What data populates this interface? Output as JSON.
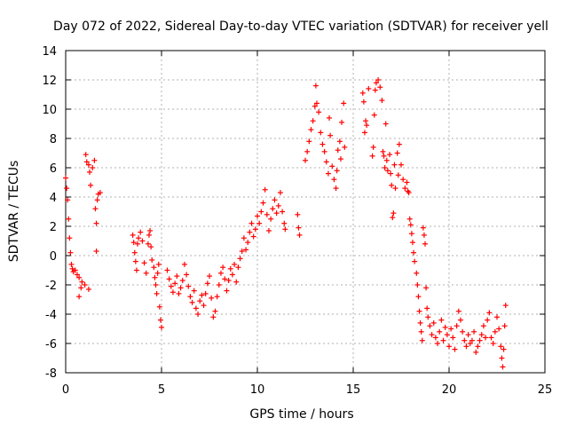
{
  "chart_data": {
    "type": "scatter",
    "title": "Day 072 of 2022, Sidereal Day-to-day VTEC variation (SDTVAR) for receiver yell",
    "xlabel": "GPS time / hours",
    "ylabel": "SDTVAR / TECUs",
    "xlim": [
      0,
      25
    ],
    "ylim": [
      -8,
      14
    ],
    "x_ticks": [
      0,
      5,
      10,
      15,
      20,
      25
    ],
    "y_ticks": [
      -8,
      -6,
      -4,
      -2,
      0,
      2,
      4,
      6,
      8,
      10,
      12,
      14
    ],
    "x_tick_labels": [
      "0",
      "5",
      "10",
      "15",
      "20",
      "25"
    ],
    "y_tick_labels": [
      "-8",
      "-6",
      "-4",
      "-2",
      "0",
      "2",
      "4",
      "6",
      "8",
      "10",
      "12",
      "14"
    ],
    "grid": true,
    "marker": "+",
    "marker_color": "#ff0000",
    "series": [
      {
        "name": "SDTVAR",
        "points": [
          [
            0.0,
            5.3
          ],
          [
            0.05,
            4.6
          ],
          [
            0.1,
            3.8
          ],
          [
            0.15,
            2.5
          ],
          [
            0.2,
            1.2
          ],
          [
            0.25,
            0.2
          ],
          [
            0.3,
            -0.6
          ],
          [
            0.35,
            -0.9
          ],
          [
            0.4,
            -1.1
          ],
          [
            0.5,
            -1.0
          ],
          [
            0.6,
            -1.3
          ],
          [
            0.7,
            -1.5
          ],
          [
            0.8,
            -2.2
          ],
          [
            0.7,
            -2.8
          ],
          [
            0.85,
            -1.8
          ],
          [
            1.0,
            -2.0
          ],
          [
            1.05,
            6.9
          ],
          [
            1.1,
            6.4
          ],
          [
            1.2,
            6.2
          ],
          [
            1.25,
            5.7
          ],
          [
            1.3,
            4.8
          ],
          [
            1.2,
            -2.3
          ],
          [
            1.4,
            6.0
          ],
          [
            1.5,
            6.5
          ],
          [
            1.55,
            3.2
          ],
          [
            1.6,
            2.2
          ],
          [
            1.6,
            0.3
          ],
          [
            1.65,
            3.8
          ],
          [
            1.7,
            4.2
          ],
          [
            1.8,
            4.3
          ],
          [
            3.5,
            1.4
          ],
          [
            3.55,
            0.9
          ],
          [
            3.6,
            0.2
          ],
          [
            3.65,
            -0.4
          ],
          [
            3.7,
            -1.0
          ],
          [
            3.75,
            0.8
          ],
          [
            3.8,
            1.2
          ],
          [
            3.9,
            1.6
          ],
          [
            4.0,
            1.0
          ],
          [
            4.1,
            -0.5
          ],
          [
            4.2,
            -1.2
          ],
          [
            4.3,
            0.8
          ],
          [
            4.35,
            1.4
          ],
          [
            4.4,
            1.7
          ],
          [
            4.45,
            0.6
          ],
          [
            4.5,
            -0.3
          ],
          [
            4.6,
            -0.8
          ],
          [
            4.65,
            -1.5
          ],
          [
            4.7,
            -2.0
          ],
          [
            4.75,
            -2.6
          ],
          [
            4.8,
            -1.2
          ],
          [
            4.85,
            -0.6
          ],
          [
            4.9,
            -3.5
          ],
          [
            4.95,
            -4.4
          ],
          [
            5.0,
            -4.9
          ],
          [
            5.3,
            -1.0
          ],
          [
            5.4,
            -1.6
          ],
          [
            5.5,
            -2.1
          ],
          [
            5.6,
            -2.5
          ],
          [
            5.7,
            -1.9
          ],
          [
            5.8,
            -1.4
          ],
          [
            5.9,
            -2.6
          ],
          [
            6.0,
            -2.2
          ],
          [
            6.1,
            -1.7
          ],
          [
            6.2,
            -0.6
          ],
          [
            6.3,
            -1.3
          ],
          [
            6.4,
            -2.1
          ],
          [
            6.5,
            -2.8
          ],
          [
            6.6,
            -3.2
          ],
          [
            6.7,
            -2.4
          ],
          [
            6.8,
            -3.6
          ],
          [
            6.9,
            -4.0
          ],
          [
            7.0,
            -3.1
          ],
          [
            7.1,
            -2.7
          ],
          [
            7.2,
            -3.4
          ],
          [
            7.3,
            -2.6
          ],
          [
            7.4,
            -1.9
          ],
          [
            7.5,
            -1.4
          ],
          [
            7.6,
            -2.9
          ],
          [
            7.7,
            -4.2
          ],
          [
            7.8,
            -3.8
          ],
          [
            7.9,
            -2.8
          ],
          [
            8.0,
            -2.0
          ],
          [
            8.1,
            -1.2
          ],
          [
            8.2,
            -0.8
          ],
          [
            8.3,
            -1.6
          ],
          [
            8.4,
            -2.4
          ],
          [
            8.5,
            -1.7
          ],
          [
            8.6,
            -0.9
          ],
          [
            8.7,
            -1.3
          ],
          [
            8.8,
            -0.6
          ],
          [
            8.9,
            -1.8
          ],
          [
            9.0,
            -0.8
          ],
          [
            9.1,
            -0.2
          ],
          [
            9.2,
            0.3
          ],
          [
            9.3,
            1.2
          ],
          [
            9.4,
            0.4
          ],
          [
            9.5,
            0.9
          ],
          [
            9.6,
            1.6
          ],
          [
            9.7,
            2.2
          ],
          [
            9.8,
            1.3
          ],
          [
            9.9,
            1.8
          ],
          [
            10.0,
            2.7
          ],
          [
            10.1,
            2.2
          ],
          [
            10.2,
            3.0
          ],
          [
            10.3,
            3.6
          ],
          [
            10.4,
            4.5
          ],
          [
            10.5,
            2.8
          ],
          [
            10.6,
            1.7
          ],
          [
            10.7,
            2.5
          ],
          [
            10.8,
            3.2
          ],
          [
            10.9,
            3.8
          ],
          [
            11.0,
            2.9
          ],
          [
            11.1,
            3.4
          ],
          [
            11.2,
            4.3
          ],
          [
            11.3,
            3.0
          ],
          [
            11.4,
            2.2
          ],
          [
            11.45,
            1.8
          ],
          [
            12.1,
            2.8
          ],
          [
            12.15,
            1.9
          ],
          [
            12.2,
            1.4
          ],
          [
            12.5,
            6.5
          ],
          [
            12.6,
            7.1
          ],
          [
            12.7,
            7.8
          ],
          [
            12.8,
            8.6
          ],
          [
            12.9,
            9.2
          ],
          [
            13.0,
            10.2
          ],
          [
            13.05,
            11.6
          ],
          [
            13.1,
            10.4
          ],
          [
            13.2,
            9.8
          ],
          [
            13.3,
            8.4
          ],
          [
            13.4,
            7.6
          ],
          [
            13.5,
            7.1
          ],
          [
            13.6,
            6.4
          ],
          [
            13.7,
            5.6
          ],
          [
            13.75,
            9.4
          ],
          [
            13.8,
            8.2
          ],
          [
            13.9,
            6.1
          ],
          [
            14.0,
            5.2
          ],
          [
            14.1,
            4.6
          ],
          [
            14.15,
            5.8
          ],
          [
            14.2,
            7.2
          ],
          [
            14.3,
            7.8
          ],
          [
            14.35,
            6.6
          ],
          [
            14.4,
            9.1
          ],
          [
            14.5,
            10.4
          ],
          [
            14.55,
            7.4
          ],
          [
            15.5,
            11.1
          ],
          [
            15.55,
            10.5
          ],
          [
            15.6,
            8.4
          ],
          [
            15.65,
            9.2
          ],
          [
            15.7,
            8.9
          ],
          [
            15.8,
            11.4
          ],
          [
            16.0,
            6.8
          ],
          [
            16.05,
            7.4
          ],
          [
            16.1,
            9.6
          ],
          [
            16.15,
            11.3
          ],
          [
            16.2,
            11.8
          ],
          [
            16.3,
            12.0
          ],
          [
            16.4,
            11.5
          ],
          [
            16.5,
            10.6
          ],
          [
            16.55,
            7.1
          ],
          [
            16.6,
            6.8
          ],
          [
            16.65,
            6.0
          ],
          [
            16.7,
            9.0
          ],
          [
            16.75,
            6.5
          ],
          [
            16.8,
            5.8
          ],
          [
            16.9,
            6.9
          ],
          [
            16.95,
            5.6
          ],
          [
            17.0,
            4.8
          ],
          [
            17.05,
            2.6
          ],
          [
            17.1,
            2.9
          ],
          [
            17.15,
            6.2
          ],
          [
            17.2,
            4.6
          ],
          [
            17.3,
            7.0
          ],
          [
            17.35,
            5.5
          ],
          [
            17.4,
            7.6
          ],
          [
            17.5,
            6.2
          ],
          [
            17.6,
            5.2
          ],
          [
            17.7,
            4.6
          ],
          [
            17.8,
            5.0
          ],
          [
            17.85,
            4.4
          ],
          [
            17.9,
            4.3
          ],
          [
            17.95,
            2.5
          ],
          [
            18.0,
            2.1
          ],
          [
            18.05,
            1.5
          ],
          [
            18.1,
            0.9
          ],
          [
            18.15,
            0.2
          ],
          [
            18.2,
            -0.4
          ],
          [
            18.3,
            -1.2
          ],
          [
            18.35,
            -2.0
          ],
          [
            18.4,
            -2.8
          ],
          [
            18.45,
            -3.8
          ],
          [
            18.5,
            -4.6
          ],
          [
            18.55,
            -5.2
          ],
          [
            18.6,
            -5.8
          ],
          [
            18.65,
            1.9
          ],
          [
            18.7,
            1.4
          ],
          [
            18.75,
            0.8
          ],
          [
            18.8,
            -2.2
          ],
          [
            18.85,
            -3.6
          ],
          [
            18.9,
            -4.2
          ],
          [
            19.0,
            -4.8
          ],
          [
            19.1,
            -5.4
          ],
          [
            19.2,
            -4.6
          ],
          [
            19.3,
            -5.6
          ],
          [
            19.4,
            -6.0
          ],
          [
            19.5,
            -5.2
          ],
          [
            19.6,
            -4.4
          ],
          [
            19.7,
            -5.8
          ],
          [
            19.8,
            -4.9
          ],
          [
            19.9,
            -5.4
          ],
          [
            20.0,
            -6.2
          ],
          [
            20.1,
            -5.0
          ],
          [
            20.2,
            -5.6
          ],
          [
            20.3,
            -6.4
          ],
          [
            20.4,
            -4.8
          ],
          [
            20.5,
            -3.8
          ],
          [
            20.6,
            -4.4
          ],
          [
            20.7,
            -5.2
          ],
          [
            20.8,
            -5.8
          ],
          [
            20.9,
            -6.2
          ],
          [
            21.0,
            -5.4
          ],
          [
            21.1,
            -6.0
          ],
          [
            21.2,
            -5.8
          ],
          [
            21.3,
            -5.2
          ],
          [
            21.4,
            -6.6
          ],
          [
            21.5,
            -6.2
          ],
          [
            21.6,
            -5.8
          ],
          [
            21.7,
            -5.4
          ],
          [
            21.8,
            -4.8
          ],
          [
            21.9,
            -5.6
          ],
          [
            22.0,
            -4.4
          ],
          [
            22.1,
            -3.9
          ],
          [
            22.2,
            -5.6
          ],
          [
            22.3,
            -6.0
          ],
          [
            22.4,
            -5.2
          ],
          [
            22.5,
            -4.2
          ],
          [
            22.6,
            -5.0
          ],
          [
            22.7,
            -6.2
          ],
          [
            22.75,
            -7.0
          ],
          [
            22.8,
            -7.6
          ],
          [
            22.85,
            -6.4
          ],
          [
            22.9,
            -4.8
          ],
          [
            22.95,
            -3.4
          ]
        ]
      }
    ]
  }
}
